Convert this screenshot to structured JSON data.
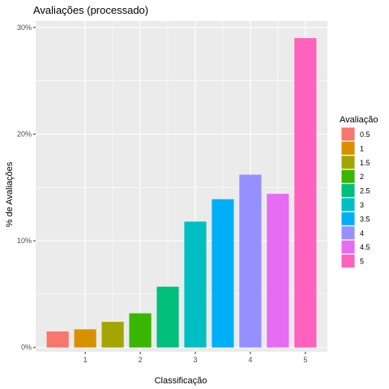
{
  "chart_data": {
    "type": "bar",
    "title": "Avaliações (processado)",
    "xlabel": "Classificação",
    "ylabel": "% de Avaliações",
    "x": [
      0.5,
      1,
      1.5,
      2,
      2.5,
      3,
      3.5,
      4,
      4.5,
      5
    ],
    "values": [
      1.5,
      1.7,
      2.4,
      3.2,
      5.7,
      11.8,
      13.9,
      16.2,
      14.4,
      29.0
    ],
    "x_ticks": [
      "1",
      "2",
      "3",
      "4",
      "5"
    ],
    "x_tick_values": [
      1,
      2,
      3,
      4,
      5
    ],
    "y_ticks": [
      "0%",
      "10%",
      "20%",
      "30%"
    ],
    "y_tick_values": [
      0,
      10,
      20,
      30
    ],
    "xlim": [
      0.1,
      5.4
    ],
    "ylim": [
      -0.4,
      30.6
    ],
    "grid": true,
    "legend": {
      "title": "Avaliação",
      "position": "right",
      "labels": [
        "0.5",
        "1",
        "1.5",
        "2",
        "2.5",
        "3",
        "3.5",
        "4",
        "4.5",
        "5"
      ]
    },
    "colors": [
      "#F8766D",
      "#D89000",
      "#A3A500",
      "#39B600",
      "#00BF7D",
      "#00BFC4",
      "#00B0F6",
      "#9590FF",
      "#E76BF3",
      "#FF62BC"
    ]
  }
}
